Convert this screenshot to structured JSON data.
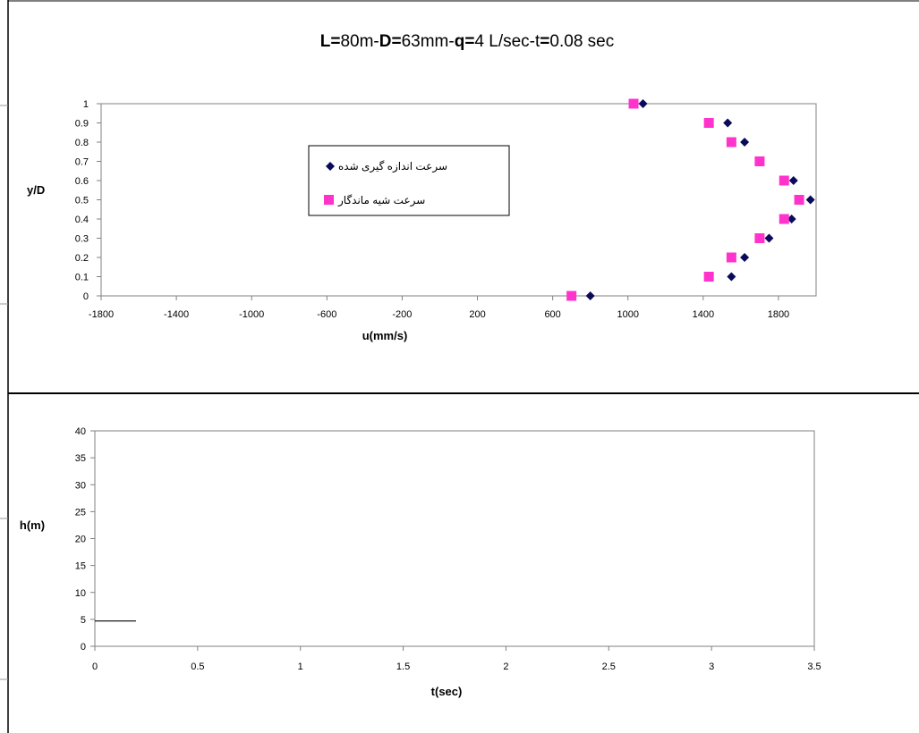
{
  "chart_data": [
    {
      "type": "scatter",
      "title_parts": [
        {
          "text": "L=",
          "bold": true
        },
        {
          "text": "80m-",
          "bold": false
        },
        {
          "text": "D=",
          "bold": true
        },
        {
          "text": "63mm-",
          "bold": false
        },
        {
          "text": "q=",
          "bold": true
        },
        {
          "text": "4 L/sec-t",
          "bold": false
        },
        {
          "text": "=",
          "bold": true
        },
        {
          "text": "0.08 sec",
          "bold": false
        }
      ],
      "xlabel": "u(mm/s)",
      "ylabel": "y/D",
      "xlim": [
        -1800,
        2000
      ],
      "ylim": [
        0,
        1
      ],
      "xticks": [
        "-1800",
        "-1400",
        "-1000",
        "-600",
        "-200",
        "200",
        "600",
        "1000",
        "1400",
        "1800"
      ],
      "yticks": [
        "0",
        "0.1",
        "0.2",
        "0.3",
        "0.4",
        "0.5",
        "0.6",
        "0.7",
        "0.8",
        "0.9",
        "1"
      ],
      "grid": false,
      "legend_position": "center",
      "series": [
        {
          "name": "سرعت اندازه گیری شده",
          "marker": "diamond",
          "color": "#0a0a5a",
          "points": [
            [
              800,
              0
            ],
            [
              1550,
              0.1
            ],
            [
              1620,
              0.2
            ],
            [
              1750,
              0.3
            ],
            [
              1870,
              0.4
            ],
            [
              1970,
              0.5
            ],
            [
              1880,
              0.6
            ],
            [
              1620,
              0.8
            ],
            [
              1530,
              0.9
            ],
            [
              1080,
              1
            ]
          ]
        },
        {
          "name": "سرعت شیه ماندگار",
          "marker": "square",
          "color": "#ff33cc",
          "points": [
            [
              700,
              0
            ],
            [
              1430,
              0.1
            ],
            [
              1550,
              0.2
            ],
            [
              1700,
              0.3
            ],
            [
              1830,
              0.4
            ],
            [
              1910,
              0.5
            ],
            [
              1830,
              0.6
            ],
            [
              1700,
              0.7
            ],
            [
              1550,
              0.8
            ],
            [
              1430,
              0.9
            ],
            [
              1030,
              1
            ]
          ]
        }
      ]
    },
    {
      "type": "line",
      "xlabel": "t(sec)",
      "ylabel": "h(m)",
      "xlim": [
        0,
        3.5
      ],
      "ylim": [
        0,
        40
      ],
      "xticks": [
        "0",
        "0.5",
        "1",
        "1.5",
        "2",
        "2.5",
        "3",
        "3.5"
      ],
      "yticks": [
        "0",
        "5",
        "10",
        "15",
        "20",
        "25",
        "30",
        "35",
        "40"
      ],
      "grid": false,
      "series": [
        {
          "color": "#000000",
          "x": [
            0,
            0.2
          ],
          "y": [
            4.7,
            4.7
          ]
        }
      ]
    }
  ]
}
